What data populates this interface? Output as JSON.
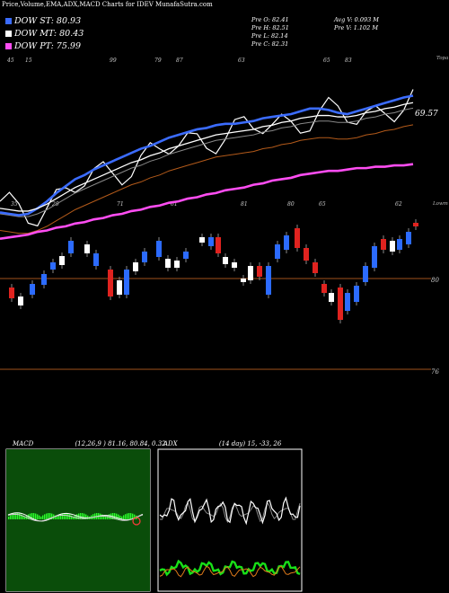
{
  "header": {
    "title": "Price,Volume,EMA,ADX,MACD Charts for IDEV MunafaSutra.com"
  },
  "legend": [
    {
      "label": "DOW ST: 80.93",
      "color": "#3b6cff"
    },
    {
      "label": "DOW MT: 80.43",
      "color": "#ffffff"
    },
    {
      "label": "DOW PT: 75.99",
      "color": "#ff4df2"
    }
  ],
  "stats": {
    "pre_o": "Pre O: 82.41",
    "pre_h": "Pre H: 82.51",
    "pre_l": "Pre L: 82.14",
    "pre_c": "Pre C: 82.31",
    "avg_v": "Avg V: 0.093 M",
    "pre_v": "Pre V: 1.102 M"
  },
  "price_panel": {
    "last_label": "69.57",
    "corner_label_top": "Topa",
    "corner_label_mid": "Lowm",
    "top_ticks": [
      "45",
      "15",
      "99",
      "79",
      "87",
      "63",
      "65",
      "83"
    ],
    "mid_ticks": [
      "35",
      "29",
      "71",
      "61",
      "81",
      "80",
      "65",
      "62"
    ],
    "y_labels": [
      "80",
      "76"
    ]
  },
  "macd": {
    "label": "MACD",
    "params": "(12,26,9 ) 81.16, 80.84, 0.32"
  },
  "adx": {
    "label": "ADX",
    "params": "(14 day) 15, -33, 26"
  },
  "chart_data": [
    {
      "type": "line",
      "title": "Price,Volume,EMA,ADX,MACD Charts for IDEV",
      "series": [
        {
          "name": "DOW ST",
          "color": "#3b6cff",
          "values": [
            72.5,
            72.4,
            72.3,
            72.4,
            72.8,
            73.3,
            73.9,
            74.4,
            74.9,
            75.2,
            75.6,
            75.9,
            76.2,
            76.5,
            76.8,
            77.1,
            77.3,
            77.6,
            77.9,
            78.1,
            78.3,
            78.5,
            78.6,
            78.8,
            78.9,
            78.9,
            79.0,
            79.1,
            79.3,
            79.4,
            79.5,
            79.6,
            79.8,
            80.0,
            80.0,
            79.9,
            79.7,
            79.6,
            79.8,
            80.0,
            80.2,
            80.4,
            80.6,
            80.8,
            80.93
          ]
        },
        {
          "name": "DOW MT",
          "color": "#ffffff",
          "values": [
            72.8,
            72.7,
            72.6,
            72.6,
            72.8,
            73.1,
            73.5,
            73.9,
            74.3,
            74.6,
            74.9,
            75.2,
            75.5,
            75.8,
            76.1,
            76.3,
            76.6,
            76.8,
            77.1,
            77.3,
            77.5,
            77.7,
            77.9,
            78.1,
            78.2,
            78.3,
            78.4,
            78.5,
            78.7,
            78.8,
            79.0,
            79.1,
            79.3,
            79.4,
            79.5,
            79.5,
            79.4,
            79.4,
            79.5,
            79.7,
            79.8,
            80.0,
            80.1,
            80.3,
            80.43
          ]
        },
        {
          "name": "DOW PT",
          "color": "#ff4df2",
          "values": [
            70.6,
            70.7,
            70.8,
            70.9,
            71.1,
            71.2,
            71.4,
            71.5,
            71.7,
            71.8,
            72.0,
            72.1,
            72.3,
            72.4,
            72.6,
            72.7,
            72.9,
            73.0,
            73.2,
            73.3,
            73.5,
            73.6,
            73.8,
            73.9,
            74.1,
            74.2,
            74.3,
            74.5,
            74.6,
            74.8,
            74.9,
            75.0,
            75.2,
            75.3,
            75.4,
            75.5,
            75.5,
            75.6,
            75.7,
            75.7,
            75.8,
            75.8,
            75.9,
            75.9,
            75.99
          ]
        }
      ]
    }
  ]
}
